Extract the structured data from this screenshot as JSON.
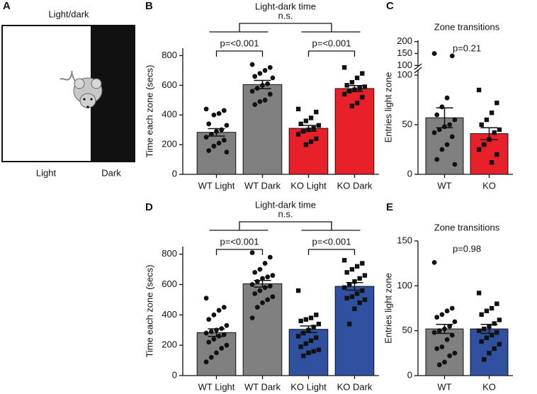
{
  "diagram": {
    "panel": "A",
    "title": "Light/dark",
    "left_label": "Light",
    "right_label": "Dark"
  },
  "chart_data": [
    {
      "type": "bar",
      "panel": "B",
      "title": "Light-dark time",
      "overall_label": "n.s.",
      "ylabel": "Time each zone (secs)",
      "categories": [
        "WT Light",
        "WT Dark",
        "KO Light",
        "KO Dark"
      ],
      "values": [
        283,
        605,
        310,
        578
      ],
      "errors": [
        25,
        28,
        20,
        20
      ],
      "colors": [
        "#808080",
        "#808080",
        "#e8202a",
        "#e8202a"
      ],
      "markers": [
        "circle",
        "circle",
        "square",
        "square"
      ],
      "points": [
        [
          440,
          430,
          410,
          400,
          340,
          330,
          300,
          290,
          270,
          250,
          230,
          210,
          190,
          160,
          150
        ],
        [
          740,
          720,
          700,
          680,
          660,
          650,
          610,
          600,
          580,
          560,
          540,
          500,
          490,
          470
        ],
        [
          440,
          420,
          380,
          360,
          340,
          330,
          310,
          300,
          290,
          270,
          240,
          220,
          200
        ],
        [
          720,
          680,
          650,
          620,
          600,
          590,
          580,
          570,
          560,
          540,
          520,
          480,
          460
        ]
      ],
      "comparisons": [
        {
          "groups": [
            0,
            1
          ],
          "label": "p=<0.001"
        },
        {
          "groups": [
            2,
            3
          ],
          "label": "p=<0.001"
        }
      ],
      "ylim": [
        0,
        850
      ],
      "yticks": [
        0,
        200,
        400,
        600,
        800
      ]
    },
    {
      "type": "bar",
      "panel": "C",
      "title": "Zone transitions",
      "annotation": "p=0.21",
      "ylabel": "Entries light zone",
      "categories": [
        "WT",
        "KO"
      ],
      "values": [
        57,
        41
      ],
      "errors": [
        10,
        6
      ],
      "colors": [
        "#808080",
        "#e8202a"
      ],
      "markers": [
        "circle",
        "square"
      ],
      "points": [
        [
          150,
          140,
          77,
          68,
          60,
          55,
          50,
          48,
          45,
          42,
          38,
          30,
          25,
          15,
          10
        ],
        [
          85,
          72,
          62,
          55,
          50,
          45,
          42,
          35,
          30,
          25,
          20,
          12
        ]
      ],
      "ylim": [
        0,
        105
      ],
      "yticks": [
        0,
        50,
        100
      ],
      "ylim_upper": [
        95,
        205
      ],
      "yticks_upper": [
        100,
        150,
        200
      ]
    },
    {
      "type": "bar",
      "panel": "D",
      "title": "Light-dark time",
      "overall_label": "n.s.",
      "ylabel": "Time each zone (secs)",
      "categories": [
        "WT Light",
        "WT Dark",
        "KO Light",
        "KO Dark"
      ],
      "values": [
        283,
        605,
        305,
        588
      ],
      "errors": [
        25,
        22,
        22,
        25
      ],
      "colors": [
        "#808080",
        "#808080",
        "#3050a0",
        "#3050a0"
      ],
      "markers": [
        "circle",
        "circle",
        "square",
        "square"
      ],
      "points": [
        [
          510,
          450,
          430,
          400,
          370,
          330,
          310,
          300,
          290,
          280,
          270,
          260,
          240,
          220,
          200,
          180,
          150,
          120,
          90
        ],
        [
          810,
          780,
          740,
          700,
          680,
          660,
          650,
          640,
          620,
          600,
          590,
          580,
          560,
          540,
          520,
          500,
          480,
          450,
          380
        ],
        [
          560,
          400,
          380,
          370,
          360,
          340,
          320,
          300,
          280,
          260,
          250,
          230,
          210,
          190,
          170,
          160,
          150,
          130
        ],
        [
          760,
          740,
          720,
          700,
          680,
          660,
          640,
          620,
          600,
          580,
          560,
          540,
          520,
          510,
          500,
          480,
          440,
          340
        ]
      ],
      "comparisons": [
        {
          "groups": [
            0,
            1
          ],
          "label": "p=<0.001"
        },
        {
          "groups": [
            2,
            3
          ],
          "label": "p=<0.001"
        }
      ],
      "ylim": [
        0,
        850
      ],
      "yticks": [
        0,
        200,
        400,
        600,
        800
      ]
    },
    {
      "type": "bar",
      "panel": "E",
      "title": "Zone transitions",
      "annotation": "p=0.98",
      "ylabel": "Entries light zone",
      "categories": [
        "WT",
        "KO"
      ],
      "values": [
        52,
        52
      ],
      "errors": [
        5,
        5
      ],
      "colors": [
        "#808080",
        "#3050a0"
      ],
      "markers": [
        "circle",
        "square"
      ],
      "points": [
        [
          126,
          75,
          72,
          68,
          65,
          60,
          55,
          52,
          50,
          48,
          45,
          40,
          32,
          30,
          25,
          22,
          15,
          12
        ],
        [
          92,
          80,
          75,
          72,
          68,
          62,
          58,
          55,
          52,
          50,
          48,
          45,
          42,
          38,
          35,
          30,
          25,
          18
        ]
      ],
      "ylim": [
        0,
        150
      ],
      "yticks": [
        0,
        50,
        100,
        150
      ]
    }
  ]
}
